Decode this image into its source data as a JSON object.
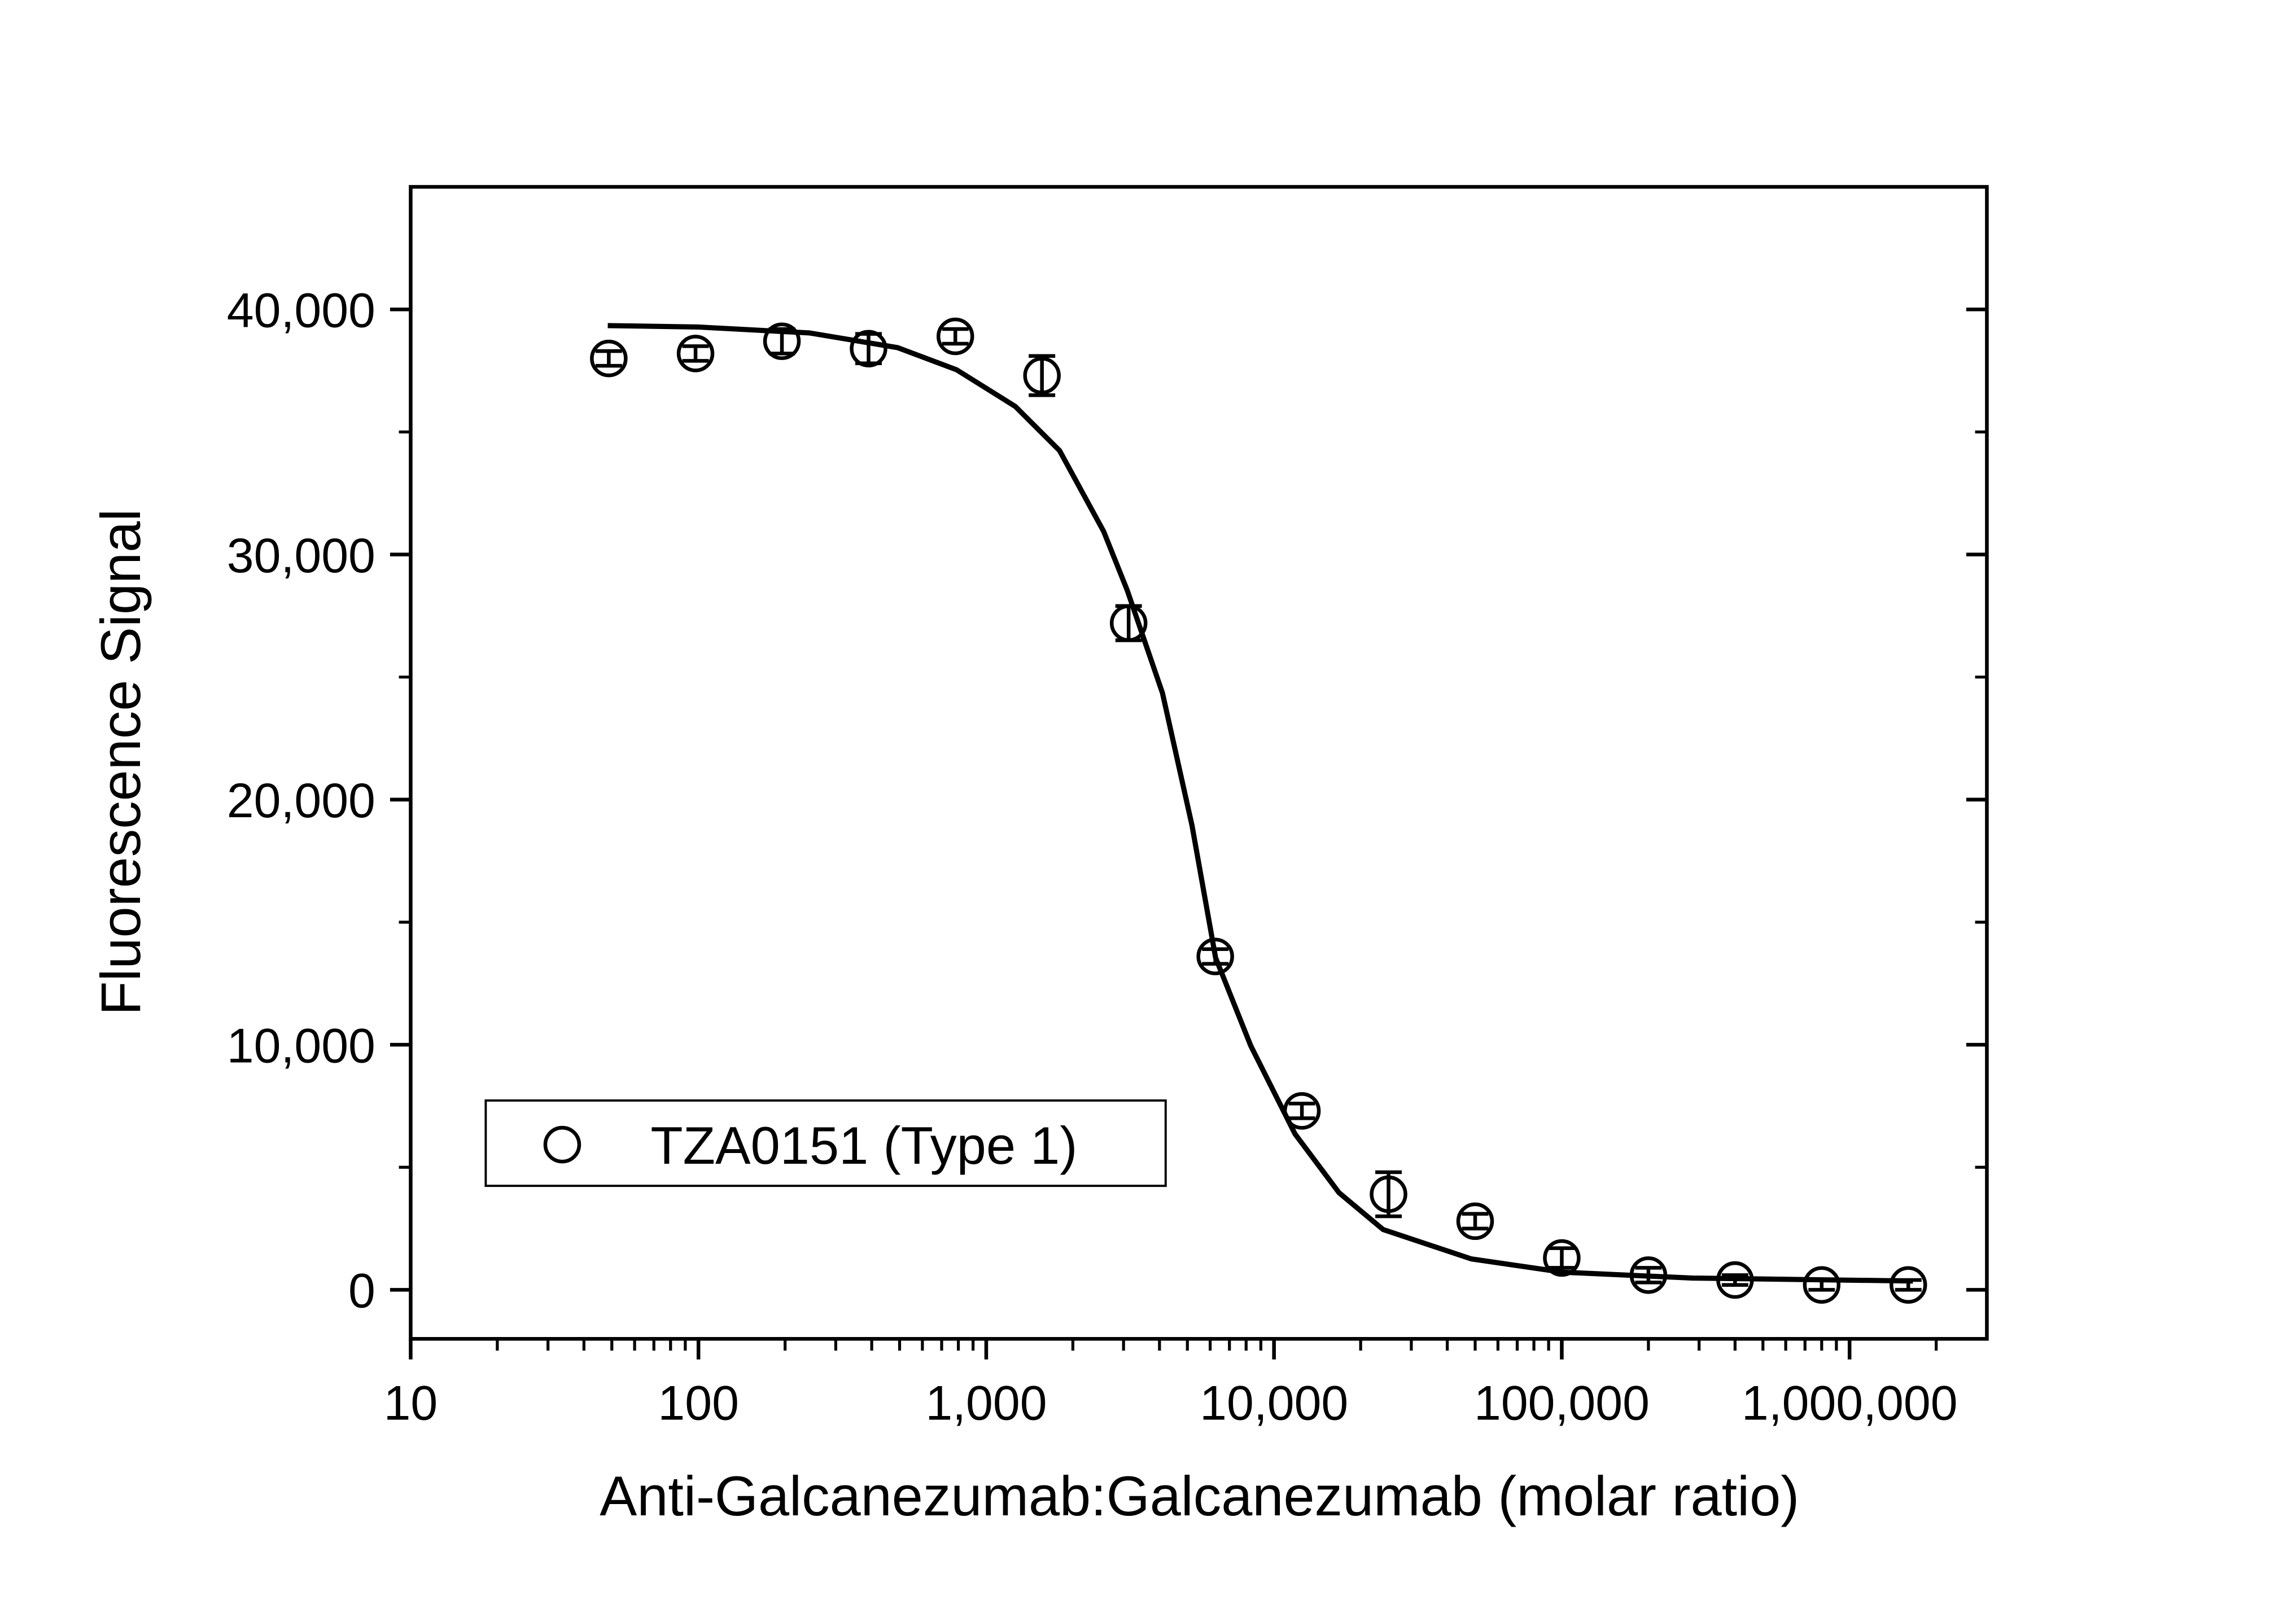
{
  "chart_data": {
    "type": "scatter",
    "x_label": "Anti-Galcanezumab:Galcanezumab (molar ratio)",
    "y_label": "Fluorescence Signal",
    "x_scale": "log",
    "xlim": [
      10,
      3000000
    ],
    "ylim": [
      -2000,
      45000
    ],
    "xticks": [
      10,
      100,
      {
        "value": 1000,
        "label": "1,000"
      },
      {
        "value": 10000,
        "label": "10,000"
      },
      {
        "value": 100000,
        "label": "100,000"
      },
      {
        "value": 1000000,
        "label": "1,000,000"
      }
    ],
    "yticks": [
      0,
      {
        "value": 10000,
        "label": "10,000"
      },
      {
        "value": 20000,
        "label": "20,000"
      },
      {
        "value": 30000,
        "label": "30,000"
      },
      {
        "value": 40000,
        "label": "40,000"
      }
    ],
    "minor_ticks": true,
    "legend_position": "lower left",
    "series": [
      {
        "name": "TZA0151 (Type 1)",
        "color": "#000000",
        "x": [
          48.8,
          97.7,
          195,
          390,
          781,
          1562,
          3125,
          6250,
          12500,
          25000,
          50000,
          100000,
          200000,
          400000,
          800000,
          1600000
        ],
        "values": [
          38000,
          38200,
          38700,
          38400,
          38900,
          37300,
          27200,
          13600,
          7300,
          3900,
          2800,
          1300,
          600,
          400,
          200,
          200
        ],
        "errors": [
          300,
          300,
          500,
          600,
          300,
          800,
          700,
          300,
          300,
          900,
          300,
          400,
          300,
          200,
          200,
          200
        ]
      }
    ],
    "fit": {
      "color": "#000000",
      "x": [
        48.4,
        100,
        243,
        492,
        788,
        1262,
        1798,
        2559,
        3090,
        4096,
        5188,
        6266,
        8300,
        11830,
        16830,
        23940,
        48530,
        100700,
        283800,
        1660000
      ],
      "values": [
        39340,
        39280,
        39040,
        38440,
        37540,
        36040,
        34240,
        30940,
        28540,
        24350,
        18950,
        13550,
        9960,
        6360,
        3960,
        2460,
        1260,
        720,
        480,
        360
      ]
    }
  }
}
